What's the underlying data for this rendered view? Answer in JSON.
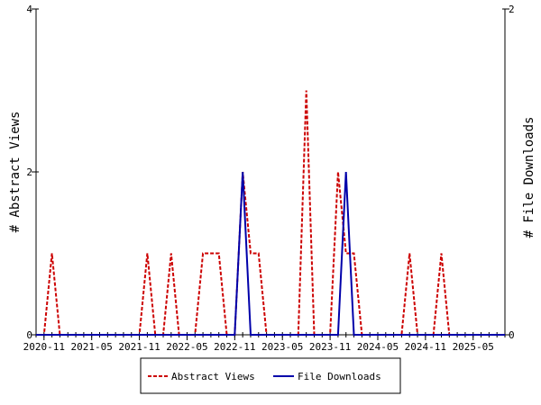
{
  "chart_data": {
    "type": "line",
    "ylabel_left": "# Abstract Views",
    "ylabel_right": "# File Downloads",
    "x_tick_labels": [
      "2020-11",
      "2021-05",
      "2021-11",
      "2022-05",
      "2022-11",
      "2023-05",
      "2023-11",
      "2024-05",
      "2024-11",
      "2025-05"
    ],
    "ylim_left": [
      0,
      4
    ],
    "yticks_left": [
      "0",
      "2",
      "4"
    ],
    "ylim_right": [
      0,
      2
    ],
    "yticks_right": [
      "0",
      "2"
    ],
    "x_range": [
      "2020-10",
      "2025-09"
    ],
    "legend_position": "bottom",
    "grid": false,
    "series": [
      {
        "name": "Abstract Views",
        "axis": "left",
        "color": "#cc0000",
        "style": "dashed",
        "points": [
          [
            "2020-10",
            0
          ],
          [
            "2020-11",
            0
          ],
          [
            "2020-12",
            1
          ],
          [
            "2021-01",
            0
          ],
          [
            "2021-02",
            0
          ],
          [
            "2021-03",
            0
          ],
          [
            "2021-04",
            0
          ],
          [
            "2021-05",
            0
          ],
          [
            "2021-06",
            0
          ],
          [
            "2021-07",
            0
          ],
          [
            "2021-08",
            0
          ],
          [
            "2021-09",
            0
          ],
          [
            "2021-10",
            0
          ],
          [
            "2021-11",
            0
          ],
          [
            "2021-12",
            1
          ],
          [
            "2022-01",
            0
          ],
          [
            "2022-02",
            0
          ],
          [
            "2022-03",
            1
          ],
          [
            "2022-04",
            0
          ],
          [
            "2022-05",
            0
          ],
          [
            "2022-06",
            0
          ],
          [
            "2022-07",
            1
          ],
          [
            "2022-08",
            1
          ],
          [
            "2022-09",
            1
          ],
          [
            "2022-10",
            0
          ],
          [
            "2022-11",
            0
          ],
          [
            "2022-12",
            2
          ],
          [
            "2023-01",
            1
          ],
          [
            "2023-02",
            1
          ],
          [
            "2023-03",
            0
          ],
          [
            "2023-04",
            0
          ],
          [
            "2023-05",
            0
          ],
          [
            "2023-06",
            0
          ],
          [
            "2023-07",
            0
          ],
          [
            "2023-08",
            3
          ],
          [
            "2023-09",
            0
          ],
          [
            "2023-10",
            0
          ],
          [
            "2023-11",
            0
          ],
          [
            "2023-12",
            2
          ],
          [
            "2024-01",
            1
          ],
          [
            "2024-02",
            1
          ],
          [
            "2024-03",
            0
          ],
          [
            "2024-04",
            0
          ],
          [
            "2024-05",
            0
          ],
          [
            "2024-06",
            0
          ],
          [
            "2024-07",
            0
          ],
          [
            "2024-08",
            0
          ],
          [
            "2024-09",
            1
          ],
          [
            "2024-10",
            0
          ],
          [
            "2024-11",
            0
          ],
          [
            "2024-12",
            0
          ],
          [
            "2025-01",
            1
          ],
          [
            "2025-02",
            0
          ],
          [
            "2025-03",
            0
          ],
          [
            "2025-04",
            0
          ],
          [
            "2025-05",
            0
          ],
          [
            "2025-06",
            0
          ],
          [
            "2025-07",
            0
          ],
          [
            "2025-08",
            0
          ],
          [
            "2025-09",
            0
          ]
        ]
      },
      {
        "name": "File Downloads",
        "axis": "right",
        "color": "#0000aa",
        "style": "solid",
        "points": [
          [
            "2020-10",
            0
          ],
          [
            "2020-11",
            0
          ],
          [
            "2020-12",
            0
          ],
          [
            "2021-01",
            0
          ],
          [
            "2021-02",
            0
          ],
          [
            "2021-03",
            0
          ],
          [
            "2021-04",
            0
          ],
          [
            "2021-05",
            0
          ],
          [
            "2021-06",
            0
          ],
          [
            "2021-07",
            0
          ],
          [
            "2021-08",
            0
          ],
          [
            "2021-09",
            0
          ],
          [
            "2021-10",
            0
          ],
          [
            "2021-11",
            0
          ],
          [
            "2021-12",
            0
          ],
          [
            "2022-01",
            0
          ],
          [
            "2022-02",
            0
          ],
          [
            "2022-03",
            0
          ],
          [
            "2022-04",
            0
          ],
          [
            "2022-05",
            0
          ],
          [
            "2022-06",
            0
          ],
          [
            "2022-07",
            0
          ],
          [
            "2022-08",
            0
          ],
          [
            "2022-09",
            0
          ],
          [
            "2022-10",
            0
          ],
          [
            "2022-11",
            0
          ],
          [
            "2022-12",
            1
          ],
          [
            "2023-01",
            0
          ],
          [
            "2023-02",
            0
          ],
          [
            "2023-03",
            0
          ],
          [
            "2023-04",
            0
          ],
          [
            "2023-05",
            0
          ],
          [
            "2023-06",
            0
          ],
          [
            "2023-07",
            0
          ],
          [
            "2023-08",
            0
          ],
          [
            "2023-09",
            0
          ],
          [
            "2023-10",
            0
          ],
          [
            "2023-11",
            0
          ],
          [
            "2023-12",
            0
          ],
          [
            "2024-01",
            1
          ],
          [
            "2024-02",
            0
          ],
          [
            "2024-03",
            0
          ],
          [
            "2024-04",
            0
          ],
          [
            "2024-05",
            0
          ],
          [
            "2024-06",
            0
          ],
          [
            "2024-07",
            0
          ],
          [
            "2024-08",
            0
          ],
          [
            "2024-09",
            0
          ],
          [
            "2024-10",
            0
          ],
          [
            "2024-11",
            0
          ],
          [
            "2024-12",
            0
          ],
          [
            "2025-01",
            0
          ],
          [
            "2025-02",
            0
          ],
          [
            "2025-03",
            0
          ],
          [
            "2025-04",
            0
          ],
          [
            "2025-05",
            0
          ],
          [
            "2025-06",
            0
          ],
          [
            "2025-07",
            0
          ],
          [
            "2025-08",
            0
          ],
          [
            "2025-09",
            0
          ]
        ]
      }
    ]
  }
}
